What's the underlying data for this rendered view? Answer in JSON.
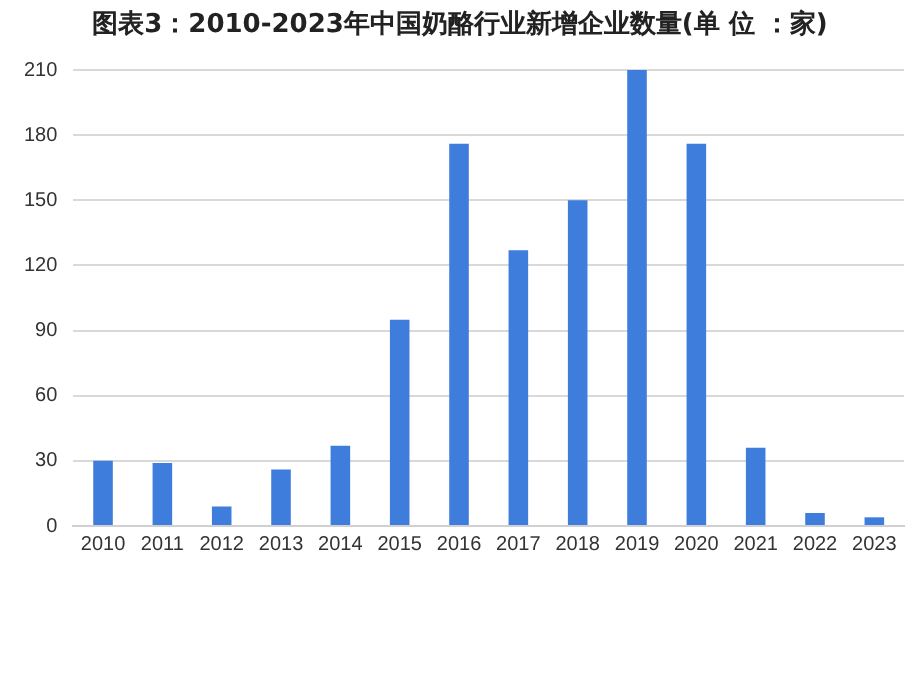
{
  "chart_data": {
    "type": "bar",
    "title": "图表3：2010-2023年中国奶酪行业新增企业数量(单 位 ：家)",
    "categories": [
      "2010",
      "2011",
      "2012",
      "2013",
      "2014",
      "2015",
      "2016",
      "2017",
      "2018",
      "2019",
      "2020",
      "2021",
      "2022",
      "2023"
    ],
    "values": [
      30,
      29,
      9,
      26,
      37,
      95,
      176,
      127,
      150,
      210,
      176,
      36,
      6,
      4
    ],
    "color": "#3f7ddc",
    "ylim": [
      0,
      210
    ],
    "yticks": [
      0,
      30,
      60,
      90,
      120,
      150,
      180,
      210
    ],
    "grid": "y",
    "legend": false
  }
}
